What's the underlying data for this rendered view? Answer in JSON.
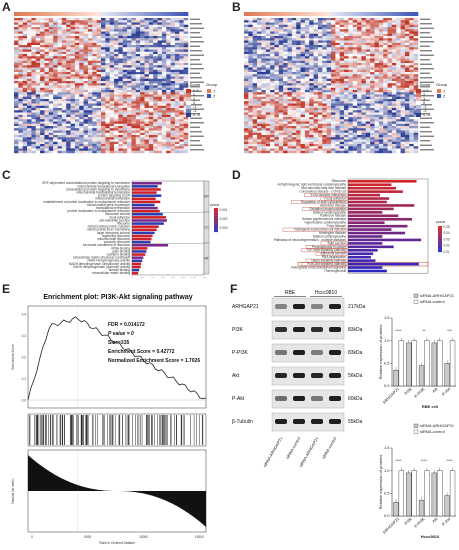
{
  "panel_labels": {
    "A": "A",
    "B": "B",
    "C": "C",
    "D": "D",
    "E": "E",
    "F": "F"
  },
  "heatmap_legend": {
    "zscore_title": "Z-Score",
    "group_title": "Group",
    "zscore_ticks": [
      "≥ 3",
      "2",
      "1",
      "0",
      "-1",
      "-2",
      "≤ -3"
    ],
    "groups": [
      "1",
      "2"
    ],
    "colors": {
      "high": "#c0392b",
      "mid": "#ffffff",
      "low": "#2c3e94",
      "g1": "#e07b54",
      "g2": "#3f57b8"
    }
  },
  "panel_c": {
    "terms": [
      "SRP-dependent cotranslational protein targeting to membrane",
      "mitochondrial translational elongation",
      "cotranslational protein targeting to membrane",
      "mitochondrial translational termination",
      "protein targeting to ER",
      "mitochondrial translation",
      "establishment of protein localization to endoplasmic reticulum",
      "mitochondrial gene expression",
      "translational termination",
      "protein localization to endoplasmic reticulum",
      "ribosomal subunit",
      "focal adhesion",
      "cell-substrate junction",
      "ribosome",
      "mitochondrial protein complex",
      "mitochondrial inner membrane",
      "large ribosomal subunit",
      "organellar ribosome",
      "mitochondrial ribosome",
      "cytosolic ribosome",
      "structural constituent of ribosome",
      "rRNA binding",
      "actin binding",
      "cadherin binding",
      "extracellular matrix structural constituent",
      "NADH dehydrogenase activity",
      "NADH dehydrogenase (ubiquinone) activity",
      "NADH dehydrogenase (quinone) activity",
      "laminin binding",
      "extracellular matrix binding"
    ],
    "values": [
      58,
      50,
      56,
      48,
      57,
      46,
      55,
      44,
      50,
      54,
      60,
      66,
      68,
      62,
      52,
      48,
      44,
      40,
      38,
      36,
      70,
      30,
      28,
      26,
      22,
      20,
      18,
      17,
      14,
      12
    ],
    "groups": [
      "BP",
      "CC",
      "MF"
    ],
    "x_ticks": [
      "0",
      "20",
      "40",
      "60",
      "80",
      "100",
      "120",
      "140"
    ],
    "legend_title": "pvalue",
    "legend_ticks": [
      "0.001",
      "0.002",
      "0.003"
    ]
  },
  "panel_d": {
    "terms": [
      "Ribosome",
      "Arrhythmogenic right ventricular cardiomyopathy",
      "Non-alcoholic fatty liver disease",
      "Coronavirus disease - COVID-19",
      "ECM-receptor interaction",
      "Focal adhesion",
      "Regulation of actin cytoskeleton",
      "Alzheimer disease",
      "Oxidative phosphorylation",
      "Dilated cardiomyopathy",
      "Parkinson disease",
      "Human papillomavirus infection",
      "Hypertrophic cardiomyopathy",
      "Prion disease",
      "Pathogenic Escherichia coli infection",
      "Huntington disease",
      "Dilated cardiomyopathy",
      "Pathways of neurodegeneration - multiple diseases",
      "Tight junction",
      "Proteoglycans in cancer",
      "TGF-beta signaling pathway",
      "Adherens junction",
      "RNA degradation",
      "Hippo signaling pathway",
      "PI3K-Akt signaling pathway",
      "Retrograde endocannabinoid signaling",
      "Thermogenesis"
    ],
    "values": [
      60,
      38,
      42,
      48,
      28,
      36,
      34,
      58,
      40,
      30,
      44,
      56,
      32,
      52,
      38,
      50,
      30,
      64,
      30,
      40,
      26,
      22,
      20,
      24,
      62,
      30,
      34
    ],
    "boxed": [
      4,
      5,
      6,
      8,
      14,
      18,
      19,
      20,
      21,
      23,
      24
    ],
    "legend_title": "pvalue",
    "legend_ticks": [
      "0.05",
      "0.04",
      "0.03",
      "0.02",
      "0.01"
    ]
  },
  "panel_e": {
    "title": "Enrichment plot: PI3K-Akt signaling pathway",
    "fdr": "FDR = 0.014172",
    "pvalue": "P value = 0",
    "size": "Size=335",
    "es": "Enrichment Score = 0.42772",
    "nes": "Normalized Enrichment Score = 1.7026",
    "y_label_top": "Enrichment Score",
    "y_label_bottom": "Ranked list metric",
    "x_label": "Rank in Ordered Dataset",
    "x_ticks": [
      "0",
      "5000",
      "10000",
      "15000"
    ],
    "y_ticks": [
      "0.4",
      "0.3",
      "0.2",
      "0.1",
      "0.0"
    ]
  },
  "panel_f": {
    "cell_lines": [
      "RBE",
      "Hccc9810"
    ],
    "proteins": [
      "ARHGAP21",
      "PI3K",
      "P-PI3K",
      "Akt",
      "P-Akt",
      "β-Tubulin"
    ],
    "sizes": [
      "217kDa",
      "83kDa",
      "83kDa",
      "56kDa",
      "60kDa",
      "55kDa"
    ],
    "lanes": [
      "siRNA-ARHGAP21",
      "siRNA-control",
      "siRNA-ARHGAP21",
      "siRNA-control"
    ],
    "chart_rbe": {
      "xlabel": "RBE cell",
      "ylabel": "Relative expression of proteins",
      "legend": [
        "siRNA-ARHGAP21",
        "siRNA-control"
      ],
      "categories": [
        "ARHGAP21",
        "PI3K",
        "P-PI3K",
        "Akt",
        "P-Akt"
      ],
      "sig": [
        "****",
        "",
        "**",
        "",
        "***"
      ]
    },
    "chart_hccc": {
      "xlabel": "Hccc9810",
      "ylabel": "Relative expression of proteins",
      "legend": [
        "siRNA-ARHGAP21",
        "siRNA-control"
      ],
      "categories": [
        "ARHGAP21",
        "PI3K",
        "P-PI3K",
        "Akt",
        "P-Akt"
      ],
      "sig": [
        "****",
        "",
        "****",
        "",
        "****"
      ]
    }
  },
  "chart_data": [
    {
      "type": "bar",
      "name_ref": "panel_f.chart_rbe",
      "categories": [
        "ARHGAP21",
        "PI3K",
        "P-PI3K",
        "Akt",
        "P-Akt"
      ],
      "series": [
        {
          "name": "siRNA-ARHGAP21",
          "values": [
            0.35,
            0.95,
            0.45,
            0.95,
            0.5
          ]
        },
        {
          "name": "siRNA-control",
          "values": [
            1.0,
            1.0,
            1.0,
            1.0,
            1.0
          ]
        }
      ],
      "ylim": [
        0,
        1.5
      ],
      "xlabel": "RBE cell",
      "ylabel": "Relative expression of proteins"
    },
    {
      "type": "bar",
      "name_ref": "panel_f.chart_hccc",
      "categories": [
        "ARHGAP21",
        "PI3K",
        "P-PI3K",
        "Akt",
        "P-Akt"
      ],
      "series": [
        {
          "name": "siRNA-ARHGAP21",
          "values": [
            0.3,
            0.95,
            0.35,
            0.95,
            0.45
          ]
        },
        {
          "name": "siRNA-control",
          "values": [
            1.0,
            1.0,
            1.0,
            1.0,
            1.0
          ]
        }
      ],
      "ylim": [
        0,
        1.5
      ],
      "xlabel": "Hccc9810",
      "ylabel": "Relative expression of proteins"
    }
  ]
}
